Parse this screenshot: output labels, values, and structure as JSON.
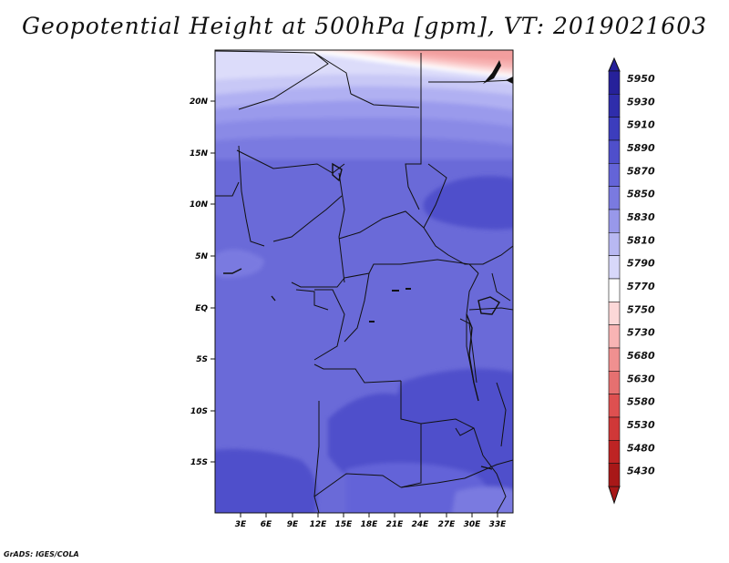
{
  "title": "Geopotential Height at 500hPa [gpm], VT: 2019021603",
  "credit": "GrADS: IGES/COLA",
  "map": {
    "lat_labels": [
      "20N",
      "15N",
      "10N",
      "5N",
      "EQ",
      "5S",
      "10S",
      "15S"
    ],
    "lon_labels": [
      "3E",
      "6E",
      "9E",
      "12E",
      "15E",
      "18E",
      "21E",
      "24E",
      "27E",
      "30E",
      "33E"
    ]
  },
  "colorbar": {
    "levels": [
      "5950",
      "5930",
      "5910",
      "5890",
      "5870",
      "5850",
      "5830",
      "5810",
      "5790",
      "5770",
      "5750",
      "5730",
      "5680",
      "5630",
      "5580",
      "5530",
      "5480",
      "5430"
    ],
    "colors": [
      "#26219a",
      "#2f2dab",
      "#3c3dbd",
      "#4f4fcb",
      "#6464d8",
      "#7a7ae0",
      "#9898ea",
      "#b8b8f2",
      "#d8d8fa",
      "#ffffff",
      "#fcd8d8",
      "#f8b4b4",
      "#f09090",
      "#e67070",
      "#de5050",
      "#d03838",
      "#be2424",
      "#a81818"
    ]
  }
}
